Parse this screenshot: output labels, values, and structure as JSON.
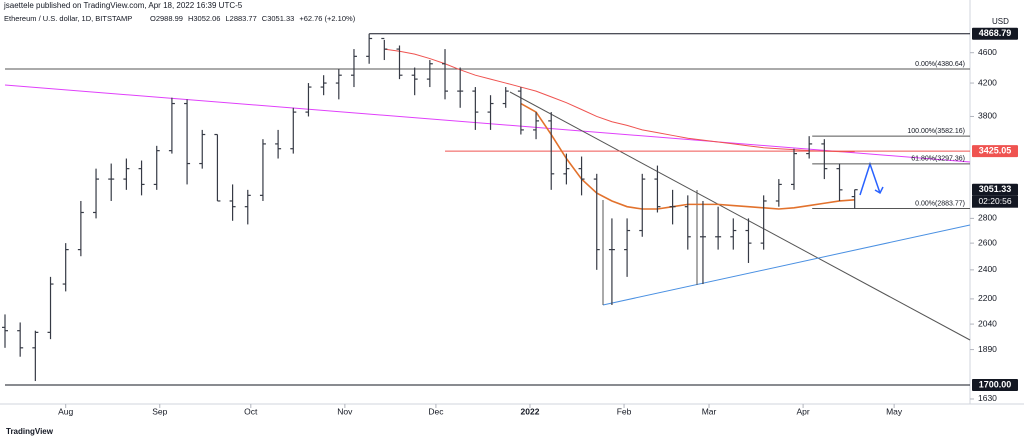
{
  "chart_data": {
    "type": "ohlc",
    "header": "jsaettele published on TradingView.com, Apr 18, 2022 16:39 UTC-5",
    "symbol": "Ethereum / U.S. dollar, 1D, BITSTAMP",
    "legend_values": [
      "O2988.99",
      "H3052.06",
      "L2883.77",
      "C3051.33",
      "+62.76 (+2.10%)"
    ],
    "currency": "USD",
    "countdown": "02:20:56",
    "footer": "TradingView",
    "log_scale": true,
    "xlim": [
      0,
      318
    ],
    "xticks": [
      {
        "value": 20,
        "label": "Aug"
      },
      {
        "value": 51,
        "label": "Sep"
      },
      {
        "value": 81,
        "label": "Oct"
      },
      {
        "value": 112,
        "label": "Nov"
      },
      {
        "value": 142,
        "label": "Dec"
      },
      {
        "value": 173,
        "label": "2022"
      },
      {
        "value": 204,
        "label": "Feb"
      },
      {
        "value": 232,
        "label": "Mar"
      },
      {
        "value": 263,
        "label": "Apr"
      },
      {
        "value": 293,
        "label": "May"
      }
    ],
    "ylim": [
      1625,
      5150
    ],
    "yticks": [
      1630,
      1890,
      2040,
      2200,
      2400,
      2600,
      2800,
      3800,
      4200,
      4600
    ],
    "x": [
      0,
      5,
      10,
      15,
      20,
      25,
      30,
      35,
      40,
      45,
      50,
      55,
      60,
      65,
      70,
      75,
      80,
      85,
      90,
      95,
      100,
      105,
      110,
      115,
      120,
      125,
      130,
      135,
      140,
      145,
      150,
      155,
      160,
      165,
      170,
      175,
      180,
      185,
      190,
      195,
      200,
      205,
      210,
      215,
      220,
      225,
      230,
      235,
      240,
      245,
      250,
      255,
      260,
      265,
      270,
      275,
      280
    ],
    "bar_color": "#363a45",
    "open": [
      2020,
      2000,
      1900,
      1990,
      2300,
      2550,
      2850,
      3150,
      3150,
      3250,
      3100,
      3430,
      3950,
      3300,
      3600,
      2950,
      2900,
      3000,
      3500,
      3450,
      3850,
      4150,
      4200,
      4300,
      4550,
      4800,
      4650,
      4300,
      4250,
      4450,
      4100,
      4100,
      3850,
      3950,
      4100,
      3650,
      3750,
      3200,
      3250,
      3150,
      2550,
      2550,
      2700,
      3150,
      2900,
      2900,
      2650,
      2650,
      2650,
      2700,
      2600,
      2950,
      3100,
      3400,
      3500,
      3250,
      2988.99
    ],
    "high": [
      2100,
      2050,
      2000,
      2350,
      2600,
      2950,
      3250,
      3300,
      3350,
      3330,
      3480,
      4020,
      4000,
      3650,
      3600,
      3100,
      3050,
      3550,
      3650,
      3900,
      4200,
      4300,
      4380,
      4650,
      4868.79,
      4780,
      4700,
      4400,
      4500,
      4650,
      4400,
      4150,
      4050,
      4150,
      4150,
      3850,
      3850,
      3400,
      3370,
      3200,
      2800,
      2800,
      3200,
      3280,
      3050,
      3000,
      2950,
      2900,
      2800,
      2800,
      3000,
      3150,
      3450,
      3582.16,
      3550,
      3300,
      3052.06
    ],
    "low": [
      1900,
      1850,
      1720,
      1950,
      2250,
      2500,
      2800,
      2950,
      3050,
      3000,
      3050,
      3400,
      3100,
      3250,
      2950,
      2780,
      2750,
      2950,
      3350,
      3400,
      3800,
      4050,
      4000,
      4150,
      4450,
      4500,
      4250,
      4050,
      4150,
      4000,
      3900,
      3650,
      3650,
      3900,
      3600,
      3550,
      3050,
      3100,
      3000,
      2400,
      2160,
      2350,
      2650,
      2850,
      2750,
      2550,
      2300,
      2550,
      2550,
      2450,
      2550,
      2900,
      3050,
      3350,
      3150,
      2950,
      2883.77
    ],
    "close": [
      2000,
      1900,
      1990,
      2300,
      2550,
      2850,
      3150,
      3150,
      3250,
      3100,
      3430,
      3950,
      3300,
      3600,
      2950,
      2900,
      3000,
      3500,
      3450,
      3850,
      4150,
      4200,
      4300,
      4550,
      4800,
      4650,
      4300,
      4250,
      4450,
      4100,
      4100,
      3850,
      3950,
      4100,
      3650,
      3750,
      3200,
      3250,
      3150,
      2550,
      2550,
      2700,
      3150,
      2900,
      2900,
      2650,
      2650,
      2650,
      2700,
      2600,
      2950,
      3100,
      3400,
      3500,
      3250,
      3050,
      3051.33
    ],
    "moving_averages": [
      {
        "color": "#e2722d",
        "values": [
          null,
          null,
          null,
          null,
          null,
          null,
          null,
          null,
          null,
          null,
          null,
          null,
          null,
          null,
          null,
          null,
          null,
          null,
          null,
          null,
          null,
          null,
          null,
          null,
          null,
          null,
          null,
          null,
          null,
          null,
          null,
          null,
          null,
          null,
          3950,
          3850,
          3600,
          3350,
          3150,
          3020,
          2950,
          2900,
          2880,
          2880,
          2900,
          2920,
          2920,
          2920,
          2910,
          2900,
          2890,
          2880,
          2890,
          2910,
          2930,
          2950,
          2960
        ]
      },
      {
        "color": "#ef5350",
        "values": [
          null,
          null,
          null,
          null,
          null,
          null,
          null,
          null,
          null,
          null,
          null,
          null,
          null,
          null,
          null,
          null,
          null,
          null,
          null,
          null,
          null,
          null,
          null,
          null,
          null,
          4650,
          4620,
          4580,
          4520,
          4450,
          4370,
          4300,
          4250,
          4200,
          4150,
          4100,
          4030,
          3960,
          3880,
          3800,
          3740,
          3700,
          3650,
          3620,
          3590,
          3560,
          3540,
          3520,
          3500,
          3480,
          3460,
          3450,
          3440,
          3430,
          3425,
          3420,
          3420
        ]
      }
    ],
    "fib_levels": [
      {
        "value": 4380.64,
        "label": "0.00%(4380.64)",
        "from": 0
      },
      {
        "value": 3582.16,
        "label": "100.00%(3582.16)",
        "from": 266
      },
      {
        "value": 3297.36,
        "label": "61.80%(3297.36)",
        "from": 266
      },
      {
        "value": 2883.77,
        "label": "0.00%(2883.77)",
        "from": 266
      }
    ],
    "levels": [
      {
        "value": 4868.79,
        "label": "4868.79",
        "from": 120,
        "color": "#131722"
      },
      {
        "value": 3425.05,
        "label": "3425.05",
        "from": 145,
        "color": "#ef5350"
      },
      {
        "value": 3051.33,
        "label": "3051.33",
        "from": 318,
        "color": "#131722"
      },
      {
        "value": 1700,
        "label": "1700.00",
        "from": 0,
        "color": "#131722"
      }
    ]
  }
}
